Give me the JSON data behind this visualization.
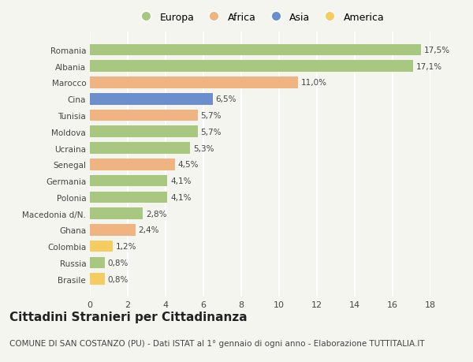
{
  "countries": [
    "Romania",
    "Albania",
    "Marocco",
    "Cina",
    "Tunisia",
    "Moldova",
    "Ucraina",
    "Senegal",
    "Germania",
    "Polonia",
    "Macedonia d/N.",
    "Ghana",
    "Colombia",
    "Russia",
    "Brasile"
  ],
  "values": [
    17.5,
    17.1,
    11.0,
    6.5,
    5.7,
    5.7,
    5.3,
    4.5,
    4.1,
    4.1,
    2.8,
    2.4,
    1.2,
    0.8,
    0.8
  ],
  "labels": [
    "17,5%",
    "17,1%",
    "11,0%",
    "6,5%",
    "5,7%",
    "5,7%",
    "5,3%",
    "4,5%",
    "4,1%",
    "4,1%",
    "2,8%",
    "2,4%",
    "1,2%",
    "0,8%",
    "0,8%"
  ],
  "continents": [
    "Europa",
    "Europa",
    "Africa",
    "Asia",
    "Africa",
    "Europa",
    "Europa",
    "Africa",
    "Europa",
    "Europa",
    "Europa",
    "Africa",
    "America",
    "Europa",
    "America"
  ],
  "colors": {
    "Europa": "#a8c882",
    "Africa": "#f0b482",
    "Asia": "#6b8ecc",
    "America": "#f5cc60"
  },
  "legend_order": [
    "Europa",
    "Africa",
    "Asia",
    "America"
  ],
  "xlim": [
    0,
    18
  ],
  "xticks": [
    0,
    2,
    4,
    6,
    8,
    10,
    12,
    14,
    16,
    18
  ],
  "title": "Cittadini Stranieri per Cittadinanza",
  "subtitle": "COMUNE DI SAN COSTANZO (PU) - Dati ISTAT al 1° gennaio di ogni anno - Elaborazione TUTTITALIA.IT",
  "background_color": "#f5f5f0",
  "bar_height": 0.7,
  "grid_color": "#ffffff",
  "text_color": "#444444",
  "label_fontsize": 7.5,
  "ytick_fontsize": 7.5,
  "xtick_fontsize": 8,
  "title_fontsize": 11,
  "subtitle_fontsize": 7.5,
  "legend_fontsize": 9
}
